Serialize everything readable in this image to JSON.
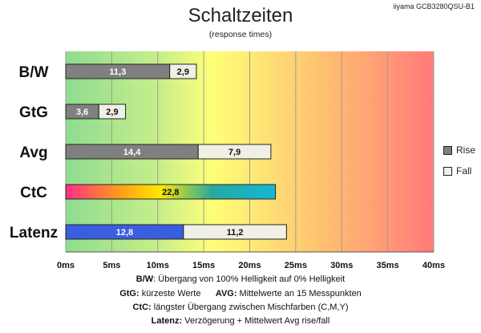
{
  "header": {
    "title": "Schaltzeiten",
    "subtitle": "(response times)",
    "model": "iiyama GCB3280QSU-B1"
  },
  "legend": {
    "rise": "Rise",
    "fall": "Fall"
  },
  "colors": {
    "rise": "#808080",
    "fall": "#f0f0e6",
    "latenz_rise": "#3a5ee0",
    "bg_green": "#8fdc8f",
    "bg_yellow": "#ffff78",
    "bg_red": "#ff7a7a",
    "grid": "#9a9a9a"
  },
  "footer": [
    {
      "bold": "B/W",
      "text": ":  Übergang von 100% Helligkeit auf 0% Helligkeit"
    },
    {
      "bold": "GtG:",
      "text": " kürzeste  Werte",
      "bold2": "AVG:",
      "text2": " Mittelwerte  an 15 Messpunkten"
    },
    {
      "bold": "CtC:",
      "text": " längster Übergang  zwischen Mischfarben  (C,M,Y)"
    },
    {
      "bold": "Latenz:",
      "text": " Verzögerung  + Mittelwert  Avg rise/fall"
    }
  ],
  "chart_data": {
    "type": "bar",
    "orientation": "horizontal",
    "stacked": true,
    "categories": [
      "B/W",
      "GtG",
      "Avg",
      "CtC",
      "Latenz"
    ],
    "series": [
      {
        "name": "Rise",
        "values": [
          11.3,
          3.6,
          14.4,
          22.8,
          12.8
        ],
        "labels": [
          "11,3",
          "3,6",
          "14,4",
          "22,8",
          "12,8"
        ]
      },
      {
        "name": "Fall",
        "values": [
          2.9,
          2.9,
          7.9,
          null,
          11.2
        ],
        "labels": [
          "2,9",
          "2,9",
          "7,9",
          "",
          "11,2"
        ]
      }
    ],
    "xlim": [
      0,
      40
    ],
    "xticks": [
      0,
      5,
      10,
      15,
      20,
      25,
      30,
      35,
      40
    ],
    "xtick_labels": [
      "0ms",
      "5ms",
      "10ms",
      "15ms",
      "20ms",
      "25ms",
      "30ms",
      "35ms",
      "40ms"
    ],
    "grid": true,
    "legend_position": "right"
  }
}
